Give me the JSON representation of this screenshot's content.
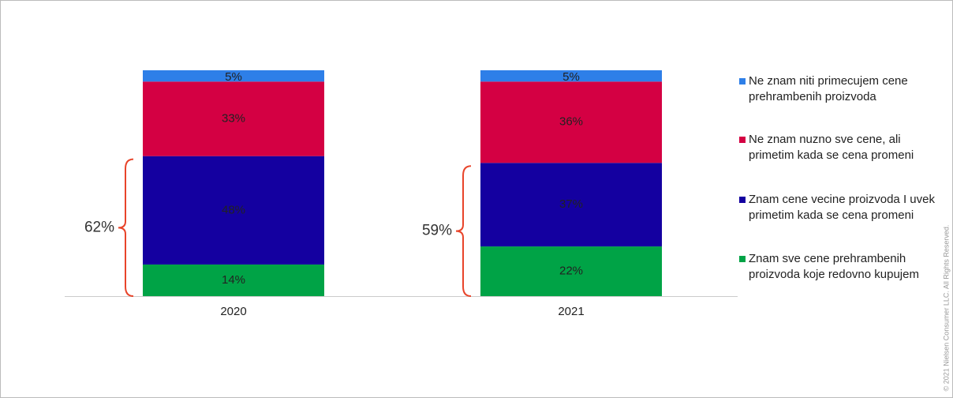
{
  "chart_data": {
    "type": "stacked_bar",
    "categories": [
      "2020",
      "2021"
    ],
    "ylim": [
      0,
      100
    ],
    "series": [
      {
        "name": "Znam sve cene prehrambenih proizvoda koje redovno kupujem",
        "color": "#00a346",
        "values": [
          14,
          22
        ],
        "value_labels": [
          "14%",
          "22%"
        ]
      },
      {
        "name": "Znam cene vecine proizvoda I uvek primetim kada se cena promeni",
        "color": "#1400a0",
        "values": [
          48,
          37
        ],
        "value_labels": [
          "48%",
          "37%"
        ]
      },
      {
        "name": "Ne znam nuzno sve cene, ali primetim kada se cena promeni",
        "color": "#d40043",
        "values": [
          33,
          36
        ],
        "value_labels": [
          "33%",
          "36%"
        ]
      },
      {
        "name": "Ne znam niti primecujem cene prehrambenih proizvoda",
        "color": "#2e7fe8",
        "values": [
          5,
          5
        ],
        "value_labels": [
          "5%",
          "5%"
        ]
      }
    ],
    "annotations": [
      "62%",
      "59%"
    ],
    "copyright": "© 2021 Nielsen Consumer LLC. All Rights Reserved."
  }
}
